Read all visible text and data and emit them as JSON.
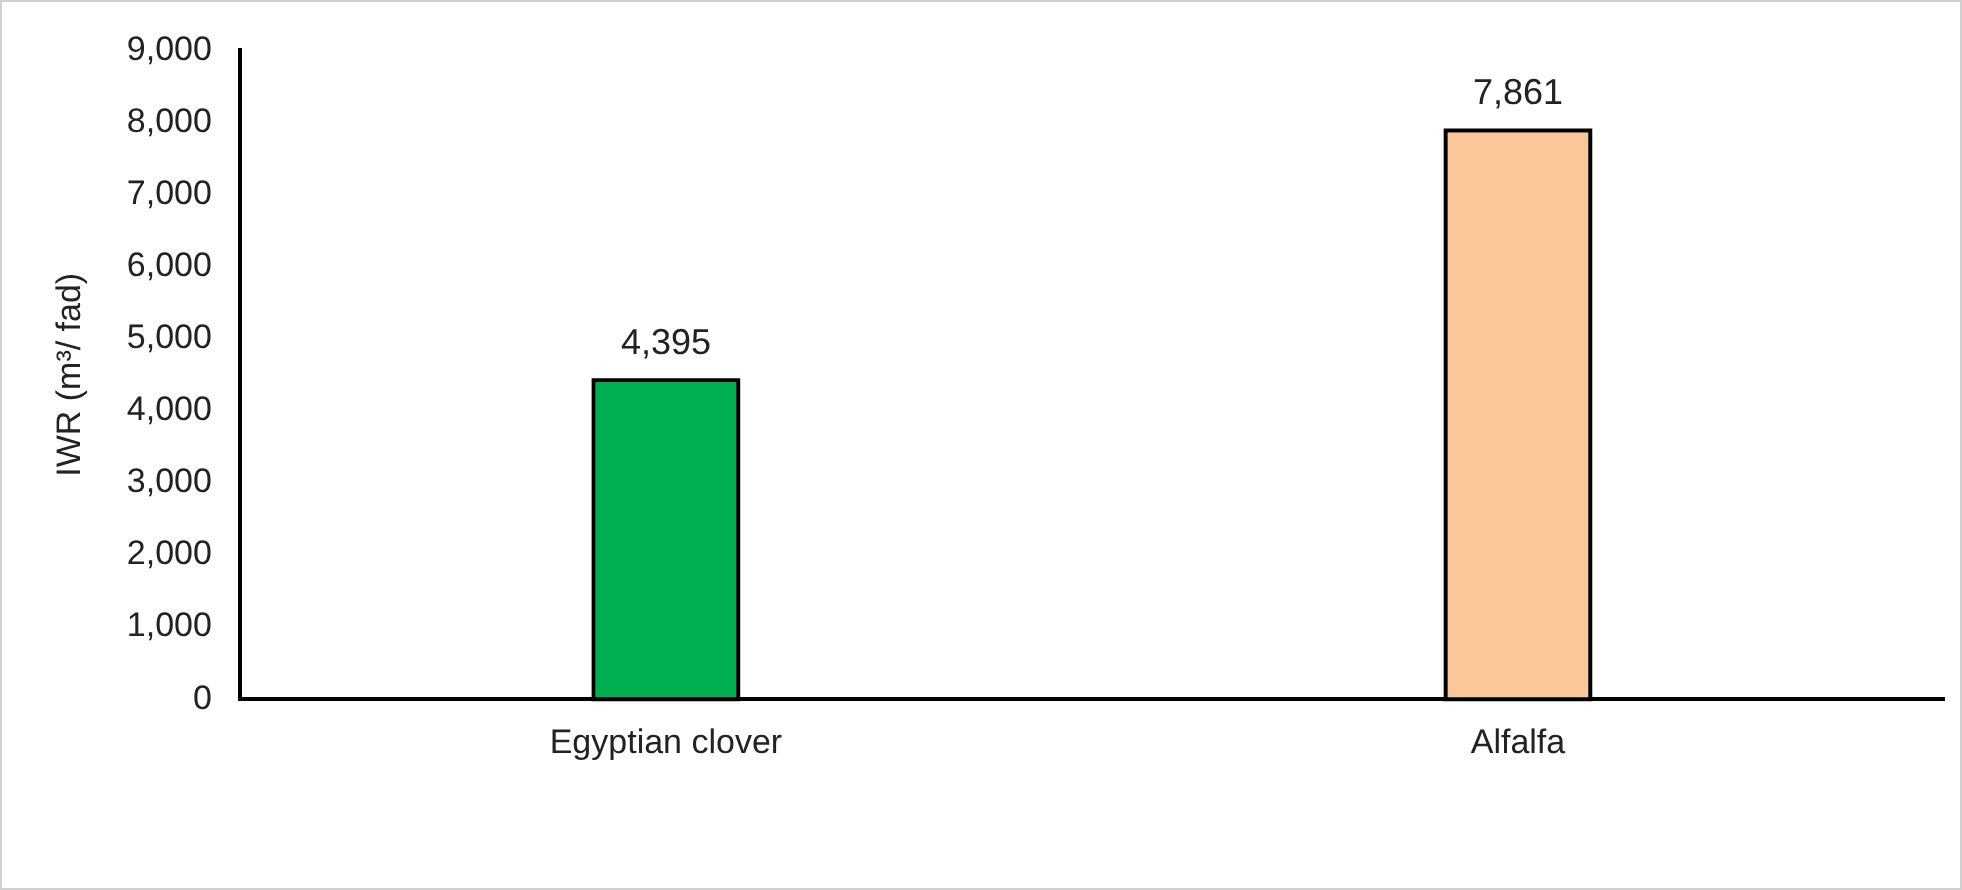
{
  "chart_data": {
    "type": "bar",
    "ylabel": "IWR (m³/ fad)",
    "categories": [
      "Egyptian clover",
      "Alfalfa"
    ],
    "values": [
      4395,
      7861
    ],
    "colors": [
      "#00b050",
      "#fac898"
    ],
    "ylim": [
      0,
      9000
    ],
    "yticks": [
      {
        "value": 0,
        "label": "0"
      },
      {
        "value": 1000,
        "label": "1,000"
      },
      {
        "value": 2000,
        "label": "2,000"
      },
      {
        "value": 3000,
        "label": "3,000"
      },
      {
        "value": 4000,
        "label": "4,000"
      },
      {
        "value": 5000,
        "label": "5,000"
      },
      {
        "value": 6000,
        "label": "6,000"
      },
      {
        "value": 7000,
        "label": "7,000"
      },
      {
        "value": 8000,
        "label": "8,000"
      },
      {
        "value": 9000,
        "label": "9,000"
      }
    ],
    "value_labels": [
      "4,395",
      "7,861"
    ],
    "grid": false,
    "legend": false
  }
}
